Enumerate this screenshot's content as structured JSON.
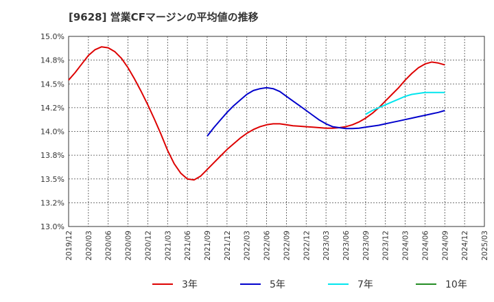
{
  "chart_data": {
    "type": "line",
    "title": "[9628]  営業CFマージンの平均値の推移",
    "xlabel": "",
    "ylabel": "",
    "x_ticks": [
      "2019/12",
      "2020/03",
      "2020/06",
      "2020/09",
      "2020/12",
      "2021/03",
      "2021/06",
      "2021/09",
      "2021/12",
      "2022/03",
      "2022/06",
      "2022/09",
      "2022/12",
      "2023/03",
      "2023/06",
      "2023/09",
      "2023/12",
      "2024/03",
      "2024/06",
      "2024/09",
      "2024/12",
      "2025/03"
    ],
    "y_ticks": [
      "13.0%",
      "13.2%",
      "13.5%",
      "13.8%",
      "14.0%",
      "14.2%",
      "14.5%",
      "14.8%",
      "15.0%"
    ],
    "ylim": [
      13.0,
      15.0
    ],
    "grid": true,
    "legend_position": "bottom",
    "series": [
      {
        "name": "3年",
        "color": "#dd0000",
        "x": [
          "2019/12",
          "2020/01",
          "2020/02",
          "2020/03",
          "2020/04",
          "2020/05",
          "2020/06",
          "2020/07",
          "2020/08",
          "2020/09",
          "2020/10",
          "2020/11",
          "2020/12",
          "2021/01",
          "2021/02",
          "2021/03",
          "2021/04",
          "2021/05",
          "2021/06",
          "2021/07",
          "2021/08",
          "2021/09",
          "2021/10",
          "2021/11",
          "2021/12",
          "2022/01",
          "2022/02",
          "2022/03",
          "2022/04",
          "2022/05",
          "2022/06",
          "2022/07",
          "2022/08",
          "2022/09",
          "2022/10",
          "2022/11",
          "2022/12",
          "2023/01",
          "2023/02",
          "2023/03",
          "2023/04",
          "2023/05",
          "2023/06",
          "2023/07",
          "2023/08",
          "2023/09",
          "2023/10",
          "2023/11",
          "2023/12",
          "2024/01",
          "2024/02",
          "2024/03",
          "2024/04",
          "2024/05",
          "2024/06",
          "2024/07",
          "2024/08",
          "2024/09"
        ],
        "values": [
          14.54,
          14.62,
          14.71,
          14.8,
          14.86,
          14.89,
          14.88,
          14.84,
          14.77,
          14.67,
          14.55,
          14.42,
          14.28,
          14.13,
          13.97,
          13.8,
          13.66,
          13.56,
          13.5,
          13.49,
          13.53,
          13.6,
          13.67,
          13.74,
          13.81,
          13.87,
          13.93,
          13.98,
          14.02,
          14.05,
          14.07,
          14.08,
          14.08,
          14.07,
          14.06,
          14.055,
          14.05,
          14.045,
          14.04,
          14.035,
          14.035,
          14.04,
          14.05,
          14.07,
          14.1,
          14.14,
          14.19,
          14.25,
          14.32,
          14.39,
          14.46,
          14.54,
          14.61,
          14.67,
          14.71,
          14.73,
          14.72,
          14.7
        ]
      },
      {
        "name": "5年",
        "color": "#0000cc",
        "x": [
          "2021/09",
          "2021/10",
          "2021/11",
          "2021/12",
          "2022/01",
          "2022/02",
          "2022/03",
          "2022/04",
          "2022/05",
          "2022/06",
          "2022/07",
          "2022/08",
          "2022/09",
          "2022/10",
          "2022/11",
          "2022/12",
          "2023/01",
          "2023/02",
          "2023/03",
          "2023/04",
          "2023/05",
          "2023/06",
          "2023/07",
          "2023/08",
          "2023/09",
          "2023/10",
          "2023/11",
          "2023/12",
          "2024/01",
          "2024/02",
          "2024/03",
          "2024/04",
          "2024/05",
          "2024/06",
          "2024/07",
          "2024/08",
          "2024/09"
        ],
        "values": [
          13.95,
          14.04,
          14.12,
          14.2,
          14.27,
          14.33,
          14.39,
          14.43,
          14.45,
          14.46,
          14.45,
          14.42,
          14.37,
          14.32,
          14.27,
          14.22,
          14.17,
          14.12,
          14.08,
          14.05,
          14.04,
          14.03,
          14.03,
          14.035,
          14.045,
          14.055,
          14.065,
          14.08,
          14.095,
          14.11,
          14.125,
          14.14,
          14.155,
          14.17,
          14.185,
          14.2,
          14.22
        ]
      },
      {
        "name": "7年",
        "color": "#00e5ee",
        "x": [
          "2023/09",
          "2023/10",
          "2023/11",
          "2023/12",
          "2024/01",
          "2024/02",
          "2024/03",
          "2024/04",
          "2024/05",
          "2024/06",
          "2024/07",
          "2024/08",
          "2024/09"
        ],
        "values": [
          14.18,
          14.22,
          14.25,
          14.28,
          14.31,
          14.34,
          14.37,
          14.39,
          14.4,
          14.41,
          14.41,
          14.41,
          14.41
        ]
      },
      {
        "name": "10年",
        "color": "#228b22",
        "x": [],
        "values": []
      }
    ]
  }
}
